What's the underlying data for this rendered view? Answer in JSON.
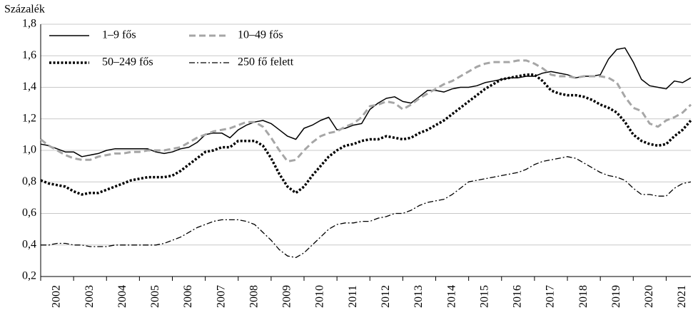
{
  "chart_data": {
    "type": "line",
    "y_axis_label": "Százalék",
    "x": [
      2002,
      2002.25,
      2002.5,
      2002.75,
      2003,
      2003.25,
      2003.5,
      2003.75,
      2004,
      2004.25,
      2004.5,
      2004.75,
      2005,
      2005.25,
      2005.5,
      2005.75,
      2006,
      2006.25,
      2006.5,
      2006.75,
      2007,
      2007.25,
      2007.5,
      2007.75,
      2008,
      2008.25,
      2008.5,
      2008.75,
      2009,
      2009.25,
      2009.5,
      2009.75,
      2010,
      2010.25,
      2010.5,
      2010.75,
      2011,
      2011.25,
      2011.5,
      2011.75,
      2012,
      2012.25,
      2012.5,
      2012.75,
      2013,
      2013.25,
      2013.5,
      2013.75,
      2014,
      2014.25,
      2014.5,
      2014.75,
      2015,
      2015.25,
      2015.5,
      2015.75,
      2016,
      2016.25,
      2016.5,
      2016.75,
      2017,
      2017.25,
      2017.5,
      2017.75,
      2018,
      2018.25,
      2018.5,
      2018.75,
      2019,
      2019.25,
      2019.5,
      2019.75,
      2020,
      2020.25,
      2020.5,
      2020.75,
      2021,
      2021.25,
      2021.5,
      2021.75
    ],
    "series": [
      {
        "name": "1–9 fős",
        "color": "#000000",
        "linestyle": "solid",
        "values": [
          1.04,
          1.03,
          1.01,
          0.99,
          0.99,
          0.96,
          0.97,
          0.98,
          1.0,
          1.01,
          1.01,
          1.01,
          1.01,
          1.01,
          0.99,
          0.98,
          0.99,
          1.01,
          1.02,
          1.05,
          1.1,
          1.11,
          1.11,
          1.08,
          1.13,
          1.16,
          1.18,
          1.19,
          1.17,
          1.13,
          1.09,
          1.07,
          1.14,
          1.16,
          1.19,
          1.21,
          1.13,
          1.14,
          1.16,
          1.17,
          1.26,
          1.3,
          1.33,
          1.34,
          1.31,
          1.3,
          1.34,
          1.38,
          1.38,
          1.37,
          1.39,
          1.4,
          1.4,
          1.41,
          1.43,
          1.44,
          1.45,
          1.46,
          1.46,
          1.47,
          1.47,
          1.49,
          1.5,
          1.49,
          1.48,
          1.46,
          1.47,
          1.47,
          1.48,
          1.58,
          1.64,
          1.65,
          1.56,
          1.45,
          1.41,
          1.4,
          1.39,
          1.44,
          1.43,
          1.46
        ]
      },
      {
        "name": "10–49 fős",
        "color": "#a6a6a6",
        "linestyle": "dashed",
        "values": [
          1.07,
          1.03,
          1.0,
          0.97,
          0.95,
          0.94,
          0.94,
          0.96,
          0.97,
          0.98,
          0.98,
          0.99,
          0.99,
          1.0,
          1.0,
          1.0,
          1.01,
          1.02,
          1.05,
          1.08,
          1.1,
          1.12,
          1.13,
          1.14,
          1.16,
          1.18,
          1.18,
          1.15,
          1.08,
          1.0,
          0.93,
          0.94,
          1.0,
          1.05,
          1.09,
          1.11,
          1.12,
          1.15,
          1.17,
          1.21,
          1.28,
          1.29,
          1.31,
          1.3,
          1.26,
          1.29,
          1.33,
          1.36,
          1.39,
          1.42,
          1.44,
          1.47,
          1.5,
          1.53,
          1.55,
          1.56,
          1.56,
          1.56,
          1.57,
          1.57,
          1.55,
          1.52,
          1.48,
          1.47,
          1.47,
          1.46,
          1.47,
          1.47,
          1.47,
          1.46,
          1.43,
          1.34,
          1.27,
          1.25,
          1.17,
          1.15,
          1.19,
          1.21,
          1.24,
          1.29
        ]
      },
      {
        "name": "50–249 fős",
        "color": "#000000",
        "linestyle": "dotted",
        "values": [
          0.81,
          0.79,
          0.78,
          0.77,
          0.74,
          0.72,
          0.73,
          0.73,
          0.75,
          0.77,
          0.79,
          0.81,
          0.82,
          0.83,
          0.83,
          0.83,
          0.84,
          0.87,
          0.91,
          0.95,
          0.99,
          1.0,
          1.02,
          1.02,
          1.06,
          1.06,
          1.06,
          1.03,
          0.95,
          0.85,
          0.77,
          0.73,
          0.77,
          0.84,
          0.9,
          0.96,
          1.0,
          1.03,
          1.04,
          1.06,
          1.07,
          1.07,
          1.09,
          1.08,
          1.07,
          1.08,
          1.11,
          1.13,
          1.16,
          1.19,
          1.23,
          1.27,
          1.31,
          1.35,
          1.39,
          1.42,
          1.45,
          1.46,
          1.47,
          1.48,
          1.48,
          1.44,
          1.38,
          1.36,
          1.35,
          1.35,
          1.34,
          1.32,
          1.29,
          1.27,
          1.24,
          1.18,
          1.1,
          1.06,
          1.04,
          1.03,
          1.04,
          1.09,
          1.13,
          1.19
        ]
      },
      {
        "name": "250 fő felett",
        "color": "#000000",
        "linestyle": "dashdot",
        "values": [
          0.4,
          0.4,
          0.41,
          0.41,
          0.4,
          0.4,
          0.39,
          0.39,
          0.39,
          0.4,
          0.4,
          0.4,
          0.4,
          0.4,
          0.4,
          0.41,
          0.43,
          0.45,
          0.48,
          0.51,
          0.53,
          0.55,
          0.56,
          0.56,
          0.56,
          0.55,
          0.53,
          0.48,
          0.43,
          0.37,
          0.33,
          0.32,
          0.35,
          0.4,
          0.45,
          0.5,
          0.53,
          0.54,
          0.54,
          0.55,
          0.55,
          0.57,
          0.58,
          0.6,
          0.6,
          0.62,
          0.65,
          0.67,
          0.68,
          0.69,
          0.72,
          0.76,
          0.8,
          0.81,
          0.82,
          0.83,
          0.84,
          0.85,
          0.86,
          0.88,
          0.91,
          0.93,
          0.94,
          0.95,
          0.96,
          0.95,
          0.92,
          0.89,
          0.86,
          0.84,
          0.83,
          0.81,
          0.76,
          0.72,
          0.72,
          0.71,
          0.71,
          0.76,
          0.79,
          0.8
        ]
      }
    ],
    "xlim": [
      2002,
      2021.75
    ],
    "xticks": [
      2002,
      2003,
      2004,
      2005,
      2006,
      2007,
      2008,
      2009,
      2010,
      2011,
      2012,
      2013,
      2014,
      2015,
      2016,
      2017,
      2018,
      2019,
      2020,
      2021
    ],
    "ylim": [
      0.2,
      1.8
    ],
    "yticks": [
      {
        "value": 0.2,
        "label": "0,2"
      },
      {
        "value": 0.4,
        "label": "0,4"
      },
      {
        "value": 0.6,
        "label": "0,6"
      },
      {
        "value": 0.8,
        "label": "0,8"
      },
      {
        "value": 1.0,
        "label": "1,0"
      },
      {
        "value": 1.2,
        "label": "1,2"
      },
      {
        "value": 1.4,
        "label": "1,4"
      },
      {
        "value": 1.6,
        "label": "1,6"
      },
      {
        "value": 1.8,
        "label": "1,8"
      }
    ],
    "grid": true,
    "legend": "upper left"
  }
}
